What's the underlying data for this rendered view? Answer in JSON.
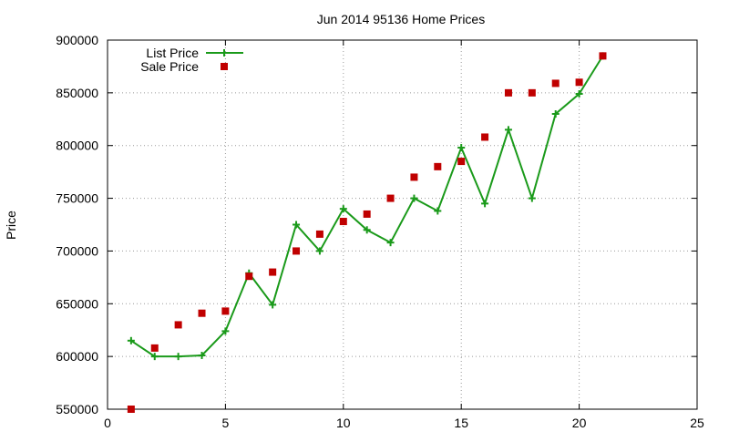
{
  "colors": {
    "list_line": "#1a9a1a",
    "sale_marker": "#c00000",
    "grid": "#9a9a9a",
    "axis": "#000000"
  },
  "chart_data": {
    "type": "line",
    "title": "Jun 2014 95136 Home Prices",
    "xlabel": "",
    "ylabel": "Price",
    "xlim": [
      0,
      25
    ],
    "ylim": [
      550000,
      900000
    ],
    "x_ticks": [
      "0",
      "5",
      "10",
      "15",
      "20",
      "25"
    ],
    "y_ticks": [
      "550000",
      "600000",
      "650000",
      "700000",
      "750000",
      "800000",
      "850000",
      "900000"
    ],
    "grid": true,
    "legend_position": "top-left",
    "series": [
      {
        "name": "List Price",
        "style": "line-with-plus-markers",
        "color": "#1a9a1a",
        "x": [
          1,
          2,
          3,
          4,
          5,
          6,
          7,
          8,
          9,
          10,
          11,
          12,
          13,
          14,
          15,
          16,
          17,
          18,
          19,
          20,
          21
        ],
        "y": [
          615000,
          600000,
          600000,
          601000,
          624000,
          679000,
          649000,
          725000,
          700000,
          740000,
          720000,
          708000,
          750000,
          738000,
          798000,
          745000,
          815000,
          750000,
          830000,
          849000,
          885000
        ]
      },
      {
        "name": "Sale Price",
        "style": "square-markers",
        "color": "#c00000",
        "x": [
          1,
          2,
          3,
          4,
          5,
          6,
          7,
          8,
          9,
          10,
          11,
          12,
          13,
          14,
          15,
          16,
          17,
          18,
          19,
          20,
          21
        ],
        "y": [
          550000,
          608000,
          630000,
          641000,
          643000,
          676000,
          680000,
          700000,
          716000,
          728000,
          735000,
          750000,
          770000,
          780000,
          785000,
          808000,
          850000,
          850000,
          859000,
          860000,
          885000
        ]
      }
    ]
  }
}
